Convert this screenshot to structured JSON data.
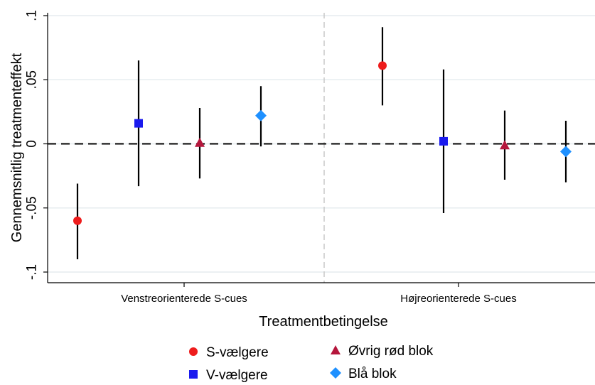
{
  "chart_data": {
    "type": "scatter",
    "subtype": "point-with-confidence-interval",
    "ylabel": "Gennemsnitlig treatmenteffekt",
    "xlabel": "Treatmentbetingelse",
    "ylim": [
      -0.1,
      0.1
    ],
    "yticks": [
      {
        "value": 0.1,
        "label": ".1"
      },
      {
        "value": 0.05,
        "label": ".05"
      },
      {
        "value": 0,
        "label": "0"
      },
      {
        "value": -0.05,
        "label": "-.05"
      },
      {
        "value": -0.1,
        "label": "-.1"
      }
    ],
    "grid": true,
    "reference_line": {
      "y": 0,
      "style": "dashed"
    },
    "groups": [
      "Venstreorienterede S-cues",
      "Højreorienterede S-cues"
    ],
    "series": [
      {
        "name": "S-vælgere",
        "color": "#ee1c1c",
        "marker": "circle",
        "values": [
          -0.06,
          0.061
        ],
        "ci_low": [
          -0.09,
          0.03
        ],
        "ci_high": [
          -0.031,
          0.091
        ]
      },
      {
        "name": "V-vælgere",
        "color": "#1a1aee",
        "marker": "square",
        "values": [
          0.016,
          0.002
        ],
        "ci_low": [
          -0.033,
          -0.054
        ],
        "ci_high": [
          0.065,
          0.058
        ]
      },
      {
        "name": "Øvrig rød blok",
        "color": "#b5163c",
        "marker": "triangle",
        "values": [
          0.001,
          -0.001
        ],
        "ci_low": [
          -0.027,
          -0.028
        ],
        "ci_high": [
          0.028,
          0.026
        ]
      },
      {
        "name": "Blå blok",
        "color": "#1e90ff",
        "marker": "diamond",
        "values": [
          0.022,
          -0.006
        ],
        "ci_low": [
          -0.002,
          -0.03
        ],
        "ci_high": [
          0.045,
          0.018
        ]
      }
    ],
    "legend": {
      "placement": "bottom",
      "columns": 2
    }
  }
}
